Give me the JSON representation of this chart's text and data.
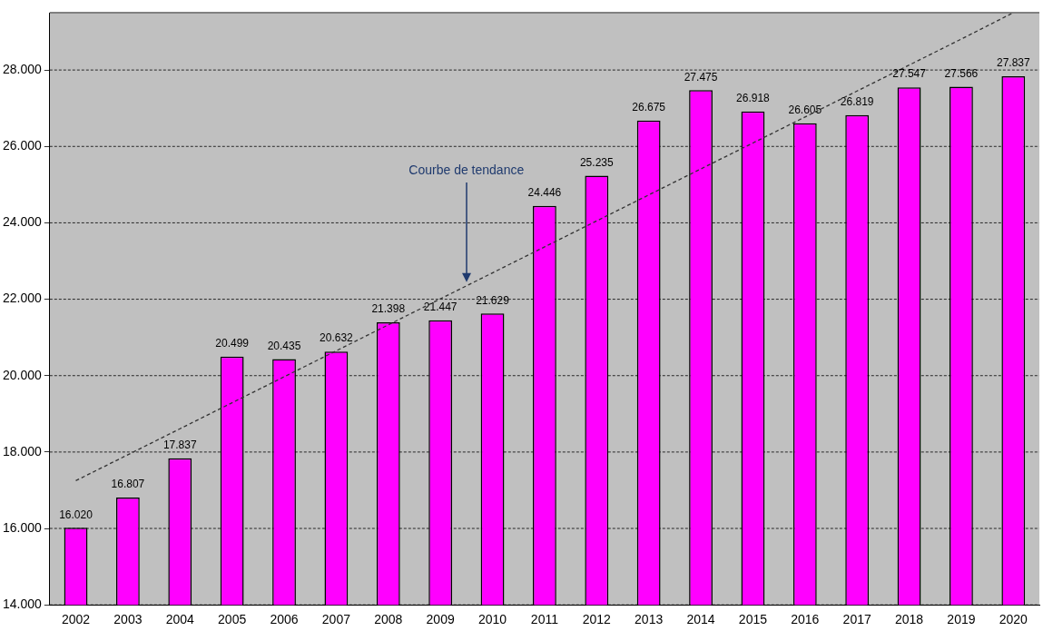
{
  "chart_data": {
    "type": "bar",
    "categories": [
      "2002",
      "2003",
      "2004",
      "2005",
      "2006",
      "2007",
      "2008",
      "2009",
      "2010",
      "2011",
      "2012",
      "2013",
      "2014",
      "2015",
      "2016",
      "2017",
      "2018",
      "2019",
      "2020"
    ],
    "series": [
      {
        "color": "#ff00ff",
        "values": [
          16020,
          16807,
          17837,
          20499,
          20435,
          20632,
          21398,
          21447,
          21629,
          24446,
          25235,
          26675,
          27475,
          26918,
          26605,
          26819,
          27547,
          27566,
          27837
        ],
        "value_labels": [
          "16.020",
          "16.807",
          "17.837",
          "20.499",
          "20.435",
          "20.632",
          "21.398",
          "21.447",
          "21.629",
          "24.446",
          "25.235",
          "26.675",
          "27.475",
          "26.918",
          "26.605",
          "26.819",
          "27.547",
          "27.566",
          "27.837"
        ]
      },
      {
        "type": "line",
        "color": "#333333",
        "line_style": "dashed",
        "marker": "none",
        "values": [
          17250,
          17930,
          18610,
          19290,
          19970,
          20650,
          21330,
          22010,
          22690,
          23370,
          24050,
          24730,
          25410,
          26090,
          26770,
          27450,
          28130,
          28810,
          29500
        ]
      }
    ],
    "ylim": [
      14000,
      29500
    ],
    "yticks": [
      {
        "value": 14000,
        "label": "14.000"
      },
      {
        "value": 16000,
        "label": "16.000"
      },
      {
        "value": 18000,
        "label": "18.000"
      },
      {
        "value": 20000,
        "label": "20.000"
      },
      {
        "value": 22000,
        "label": "22.000"
      },
      {
        "value": 24000,
        "label": "24.000"
      },
      {
        "value": 26000,
        "label": "26.000"
      },
      {
        "value": 28000,
        "label": "28.000"
      }
    ],
    "grid": "y",
    "legend": false,
    "annotations": [
      "Courbe de tendance"
    ]
  }
}
